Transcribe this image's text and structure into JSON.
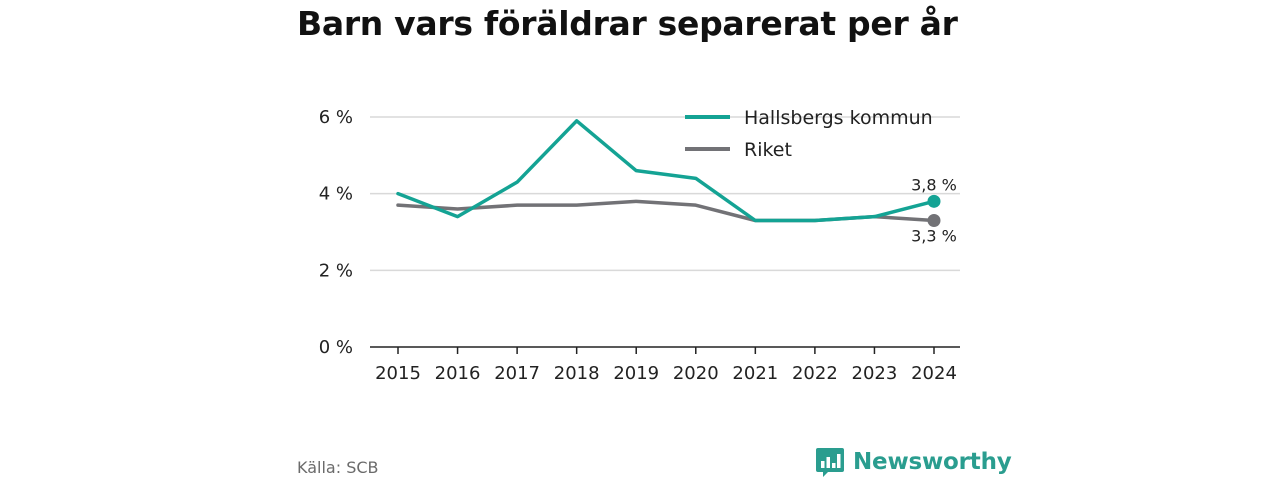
{
  "title": "Barn vars föräldrar separerat per år",
  "source": "Källa: SCB",
  "brand": {
    "name": "Newsworthy",
    "icon": "newsworthy-logo-icon",
    "color": "#2a9d8f"
  },
  "chart_data": {
    "type": "line",
    "x": [
      "2015",
      "2016",
      "2017",
      "2018",
      "2019",
      "2020",
      "2021",
      "2022",
      "2023",
      "2024"
    ],
    "ylim": [
      0,
      6
    ],
    "yticks": [
      0,
      2,
      4,
      6
    ],
    "ytick_labels": [
      "0 %",
      "2 %",
      "4 %",
      "6 %"
    ],
    "grid": true,
    "legend": "top-right",
    "series": [
      {
        "name": "Hallsbergs kommun",
        "color": "#14a394",
        "values": [
          4.0,
          3.4,
          4.3,
          5.9,
          4.6,
          4.4,
          3.3,
          3.3,
          3.4,
          3.8
        ],
        "end_label": "3,8 %"
      },
      {
        "name": "Riket",
        "color": "#727276",
        "values": [
          3.7,
          3.6,
          3.7,
          3.7,
          3.8,
          3.7,
          3.3,
          3.3,
          3.4,
          3.3
        ],
        "end_label": "3,3 %"
      }
    ]
  }
}
